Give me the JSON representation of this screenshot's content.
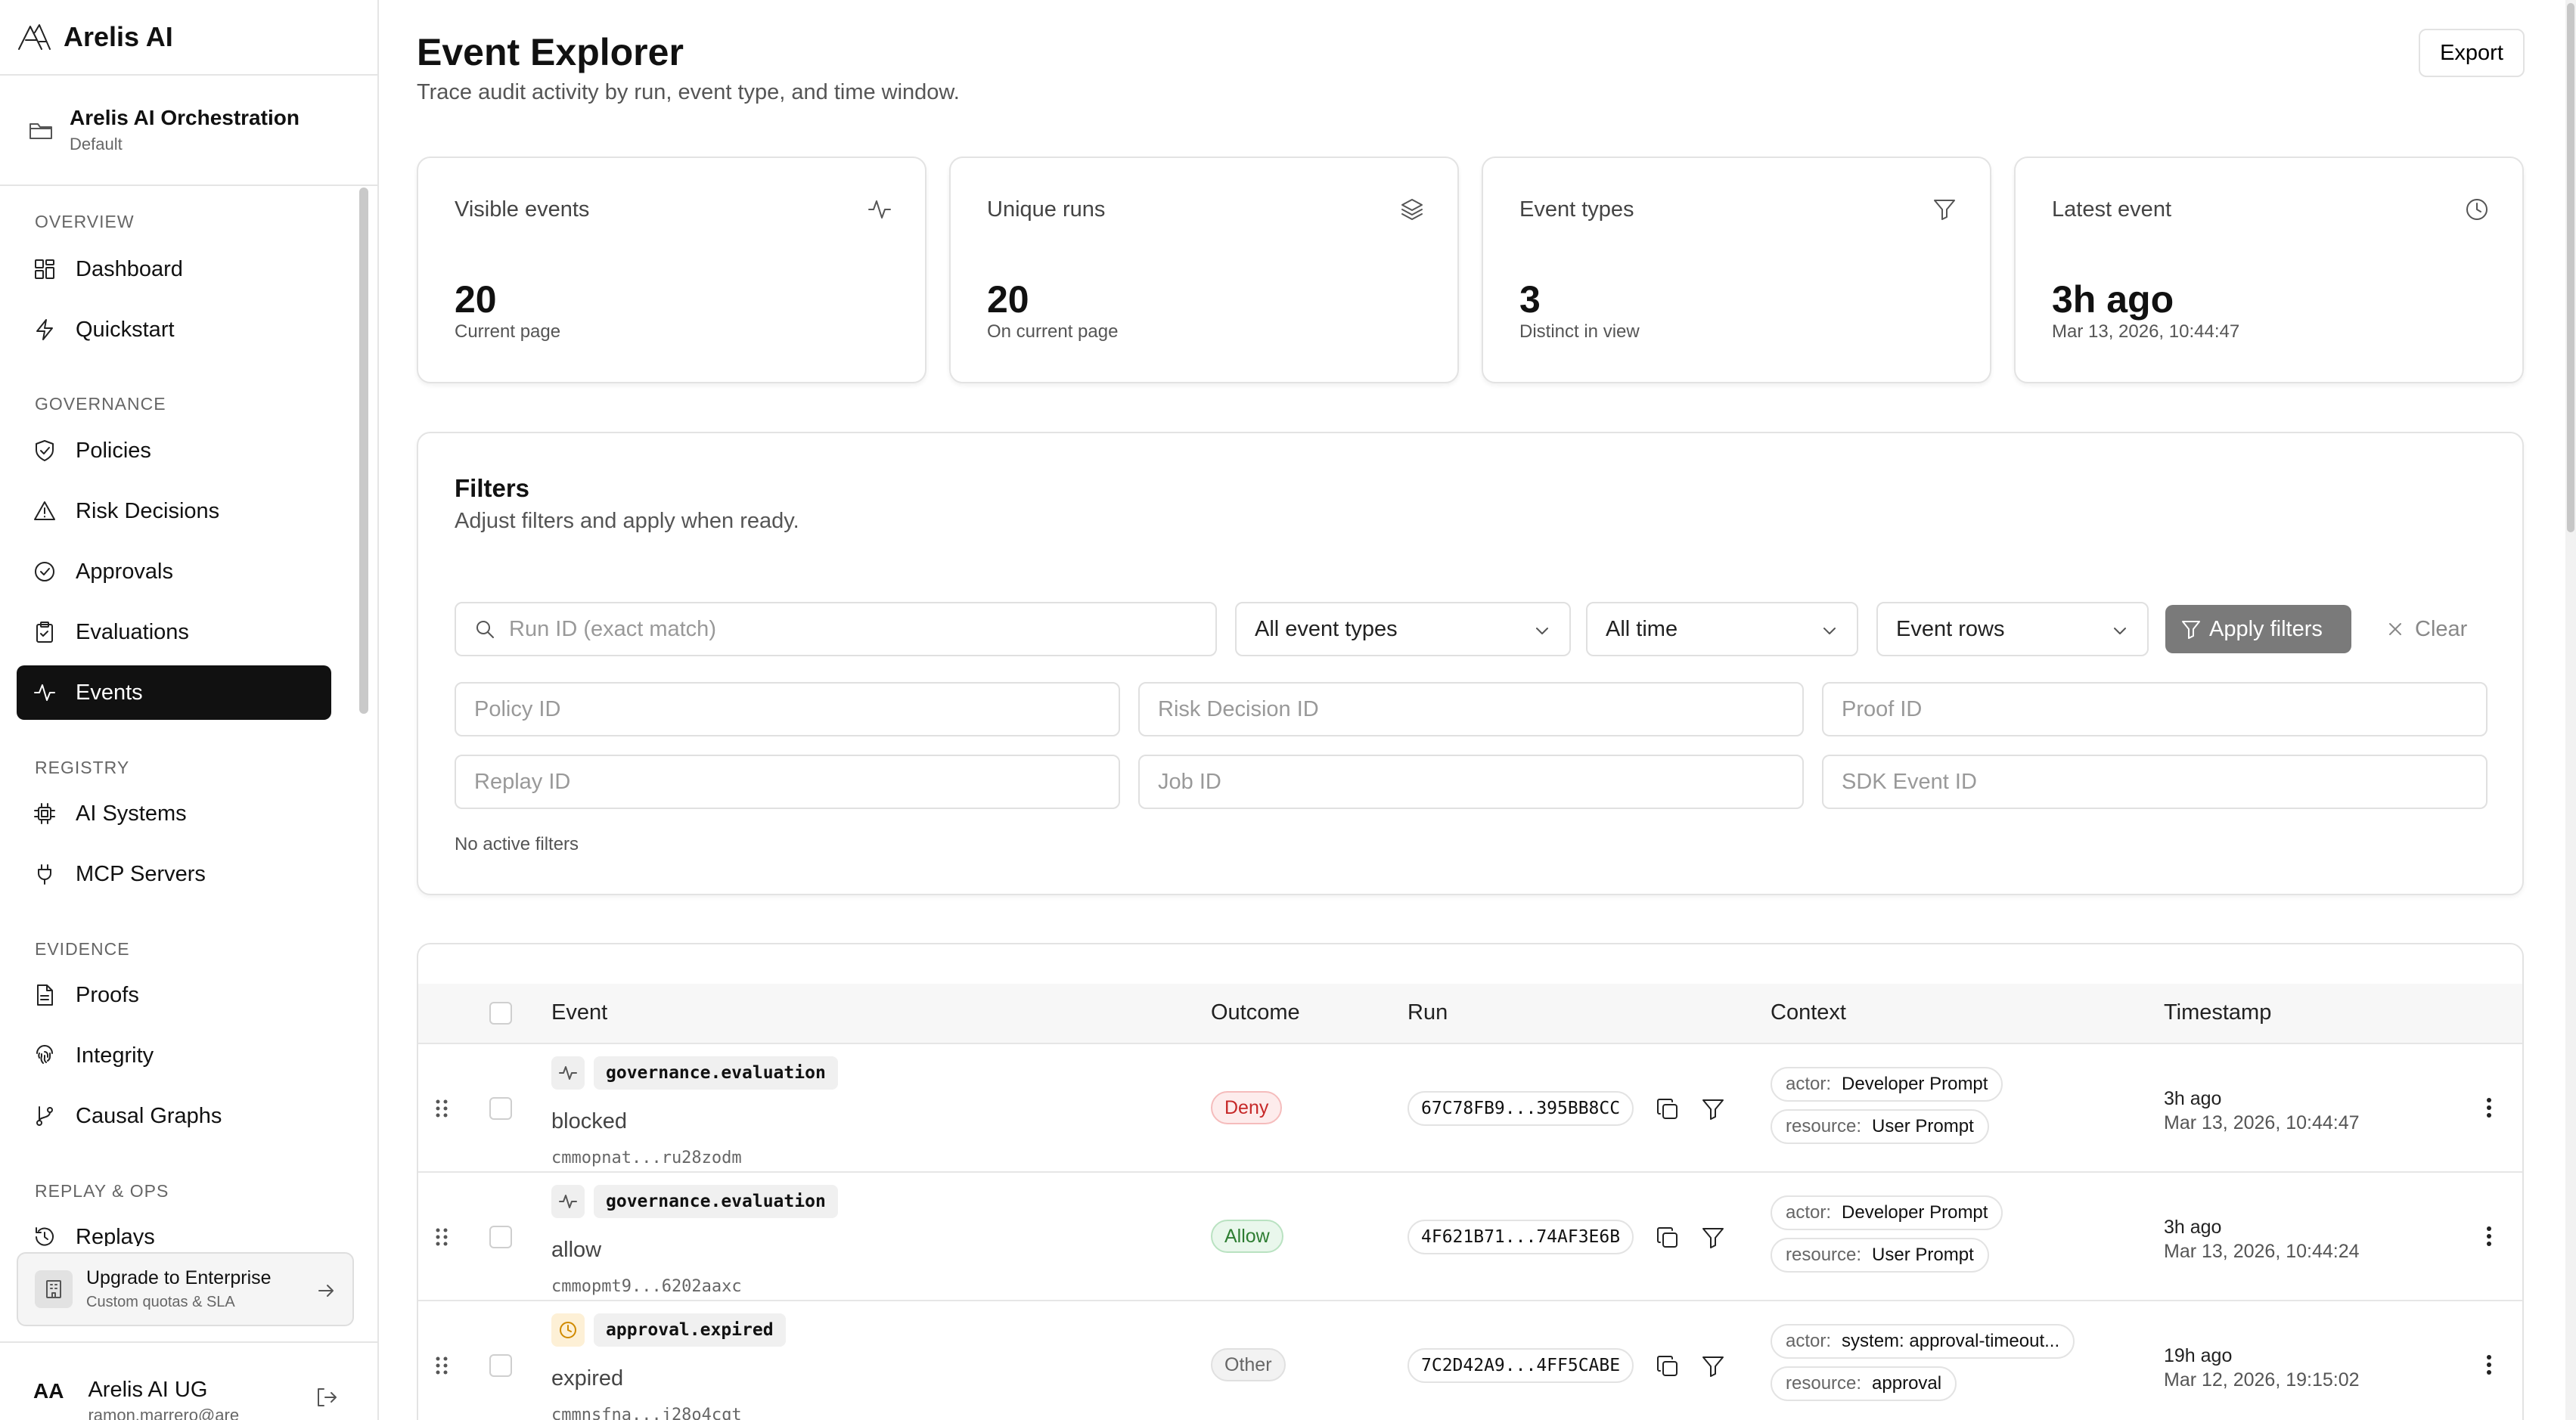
{
  "brand": {
    "name": "Arelis AI",
    "icon": "arelis-logo-icon"
  },
  "org": {
    "name": "Arelis AI Orchestration",
    "env": "Default",
    "icon": "folder-icon"
  },
  "nav": {
    "sections": [
      {
        "title": "OVERVIEW",
        "items": [
          {
            "label": "Dashboard",
            "icon": "grid-icon"
          },
          {
            "label": "Quickstart",
            "icon": "bolt-icon"
          }
        ]
      },
      {
        "title": "GOVERNANCE",
        "items": [
          {
            "label": "Policies",
            "icon": "shield-icon"
          },
          {
            "label": "Risk Decisions",
            "icon": "warning-icon"
          },
          {
            "label": "Approvals",
            "icon": "check-circle-icon"
          },
          {
            "label": "Evaluations",
            "icon": "clipboard-icon"
          },
          {
            "label": "Events",
            "icon": "activity-icon",
            "active": true
          }
        ]
      },
      {
        "title": "REGISTRY",
        "items": [
          {
            "label": "AI Systems",
            "icon": "chip-icon"
          },
          {
            "label": "MCP Servers",
            "icon": "plug-icon"
          }
        ]
      },
      {
        "title": "EVIDENCE",
        "items": [
          {
            "label": "Proofs",
            "icon": "file-icon"
          },
          {
            "label": "Integrity",
            "icon": "fingerprint-icon"
          },
          {
            "label": "Causal Graphs",
            "icon": "git-branch-icon"
          }
        ]
      },
      {
        "title": "REPLAY & OPS",
        "items": [
          {
            "label": "Replays",
            "icon": "history-icon"
          }
        ]
      }
    ]
  },
  "upgrade": {
    "title": "Upgrade to Enterprise",
    "subtitle": "Custom quotas & SLA"
  },
  "user": {
    "initials": "AA",
    "name": "Arelis AI UG",
    "email": "ramon.marrero@are"
  },
  "header": {
    "title": "Event Explorer",
    "subtitle": "Trace audit activity by run, event type, and time window.",
    "export_label": "Export"
  },
  "stats": [
    {
      "title": "Visible events",
      "value": "20",
      "sub": "Current page",
      "icon": "activity-icon"
    },
    {
      "title": "Unique runs",
      "value": "20",
      "sub": "On current page",
      "icon": "layers-icon"
    },
    {
      "title": "Event types",
      "value": "3",
      "sub": "Distinct in view",
      "icon": "filter-icon"
    },
    {
      "title": "Latest event",
      "value": "3h ago",
      "sub": "Mar 13, 2026, 10:44:47",
      "icon": "clock-icon"
    }
  ],
  "filters": {
    "title": "Filters",
    "subtitle": "Adjust filters and apply when ready.",
    "run_id_placeholder": "Run ID (exact match)",
    "event_type": "All event types",
    "time": "All time",
    "rows": "Event rows",
    "apply_label": "Apply filters",
    "clear_label": "Clear",
    "policy_placeholder": "Policy ID",
    "risk_placeholder": "Risk Decision ID",
    "proof_placeholder": "Proof ID",
    "replay_placeholder": "Replay ID",
    "job_placeholder": "Job ID",
    "sdk_placeholder": "SDK Event ID",
    "status": "No active filters"
  },
  "table": {
    "columns": {
      "event": "Event",
      "outcome": "Outcome",
      "run": "Run",
      "context": "Context",
      "timestamp": "Timestamp"
    },
    "rows": [
      {
        "type": "governance.evaluation",
        "label": "blocked",
        "id": "cmmopnat...ru28zodm",
        "outcome": "Deny",
        "outcome_kind": "deny",
        "run": "67C78FB9...395BB8CC",
        "actor": "Developer Prompt",
        "resource": "User Prompt",
        "rel": "3h ago",
        "time": "Mar 13, 2026, 10:44:47",
        "icon": "activity-icon"
      },
      {
        "type": "governance.evaluation",
        "label": "allow",
        "id": "cmmopmt9...6202aaxc",
        "outcome": "Allow",
        "outcome_kind": "allow",
        "run": "4F621B71...74AF3E6B",
        "actor": "Developer Prompt",
        "resource": "User Prompt",
        "rel": "3h ago",
        "time": "Mar 13, 2026, 10:44:24",
        "icon": "activity-icon"
      },
      {
        "type": "approval.expired",
        "label": "expired",
        "id": "cmmnsfna...j28o4cqt",
        "outcome": "Other",
        "outcome_kind": "other",
        "run": "7C2D42A9...4FF5CABE",
        "actor": "system: approval-timeout...",
        "resource": "approval",
        "rel": "19h ago",
        "time": "Mar 12, 2026, 19:15:02",
        "icon": "clock-icon"
      }
    ],
    "context_keys": {
      "actor": "actor:",
      "resource": "resource:"
    }
  }
}
